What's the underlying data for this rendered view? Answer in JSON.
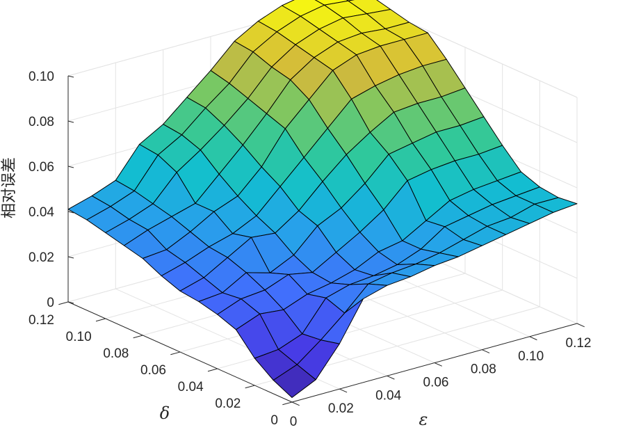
{
  "chart_data": {
    "type": "surface",
    "xlabel": "ε",
    "ylabel": "δ",
    "zlabel": "相对误差",
    "xlim": [
      0,
      0.12
    ],
    "ylim": [
      0,
      0.12
    ],
    "zlim": [
      0,
      0.1
    ],
    "xticks": [
      "0",
      "0.02",
      "0.04",
      "0.06",
      "0.08",
      "0.10",
      "0.12"
    ],
    "yticks": [
      "0",
      "0.02",
      "0.04",
      "0.06",
      "0.08",
      "0.10",
      "0.12"
    ],
    "zticks": [
      "0",
      "0.02",
      "0.04",
      "0.06",
      "0.08",
      "0.10"
    ],
    "x": [
      0,
      0.01,
      0.02,
      0.03,
      0.04,
      0.05,
      0.06,
      0.07,
      0.08,
      0.09,
      0.1,
      0.11,
      0.12
    ],
    "y": [
      0,
      0.01,
      0.02,
      0.03,
      0.04,
      0.05,
      0.06,
      0.07,
      0.08,
      0.09,
      0.1,
      0.11,
      0.12
    ],
    "z": [
      [
        0.002,
        0.007,
        0.02,
        0.037,
        0.04,
        0.041,
        0.043,
        0.044,
        0.046,
        0.048,
        0.05,
        0.052,
        0.053
      ],
      [
        0.006,
        0.01,
        0.018,
        0.027,
        0.037,
        0.039,
        0.04,
        0.042,
        0.045,
        0.048,
        0.049,
        0.052,
        0.052
      ],
      [
        0.012,
        0.013,
        0.017,
        0.03,
        0.033,
        0.034,
        0.036,
        0.04,
        0.047,
        0.049,
        0.051,
        0.052,
        0.053
      ],
      [
        0.021,
        0.025,
        0.024,
        0.028,
        0.03,
        0.033,
        0.038,
        0.04,
        0.046,
        0.052,
        0.054,
        0.055,
        0.056
      ],
      [
        0.024,
        0.028,
        0.029,
        0.033,
        0.031,
        0.037,
        0.043,
        0.05,
        0.06,
        0.062,
        0.063,
        0.063,
        0.064
      ],
      [
        0.026,
        0.027,
        0.033,
        0.03,
        0.035,
        0.045,
        0.05,
        0.058,
        0.068,
        0.07,
        0.072,
        0.072,
        0.073
      ],
      [
        0.027,
        0.03,
        0.036,
        0.042,
        0.041,
        0.048,
        0.058,
        0.067,
        0.074,
        0.08,
        0.081,
        0.081,
        0.082
      ],
      [
        0.03,
        0.033,
        0.037,
        0.04,
        0.045,
        0.055,
        0.065,
        0.075,
        0.085,
        0.088,
        0.09,
        0.091,
        0.091
      ],
      [
        0.034,
        0.035,
        0.04,
        0.046,
        0.05,
        0.06,
        0.074,
        0.084,
        0.094,
        0.098,
        0.099,
        0.099,
        0.099
      ],
      [
        0.036,
        0.04,
        0.043,
        0.046,
        0.056,
        0.066,
        0.077,
        0.089,
        0.096,
        0.1,
        0.101,
        0.1,
        0.1
      ],
      [
        0.038,
        0.041,
        0.045,
        0.056,
        0.063,
        0.071,
        0.08,
        0.091,
        0.098,
        0.102,
        0.104,
        0.103,
        0.102
      ],
      [
        0.04,
        0.043,
        0.047,
        0.06,
        0.066,
        0.075,
        0.083,
        0.094,
        0.1,
        0.104,
        0.106,
        0.105,
        0.104
      ],
      [
        0.041,
        0.044,
        0.048,
        0.061,
        0.067,
        0.076,
        0.085,
        0.095,
        0.101,
        0.105,
        0.107,
        0.107,
        0.106
      ]
    ],
    "colormap": "parula",
    "grid": true
  }
}
